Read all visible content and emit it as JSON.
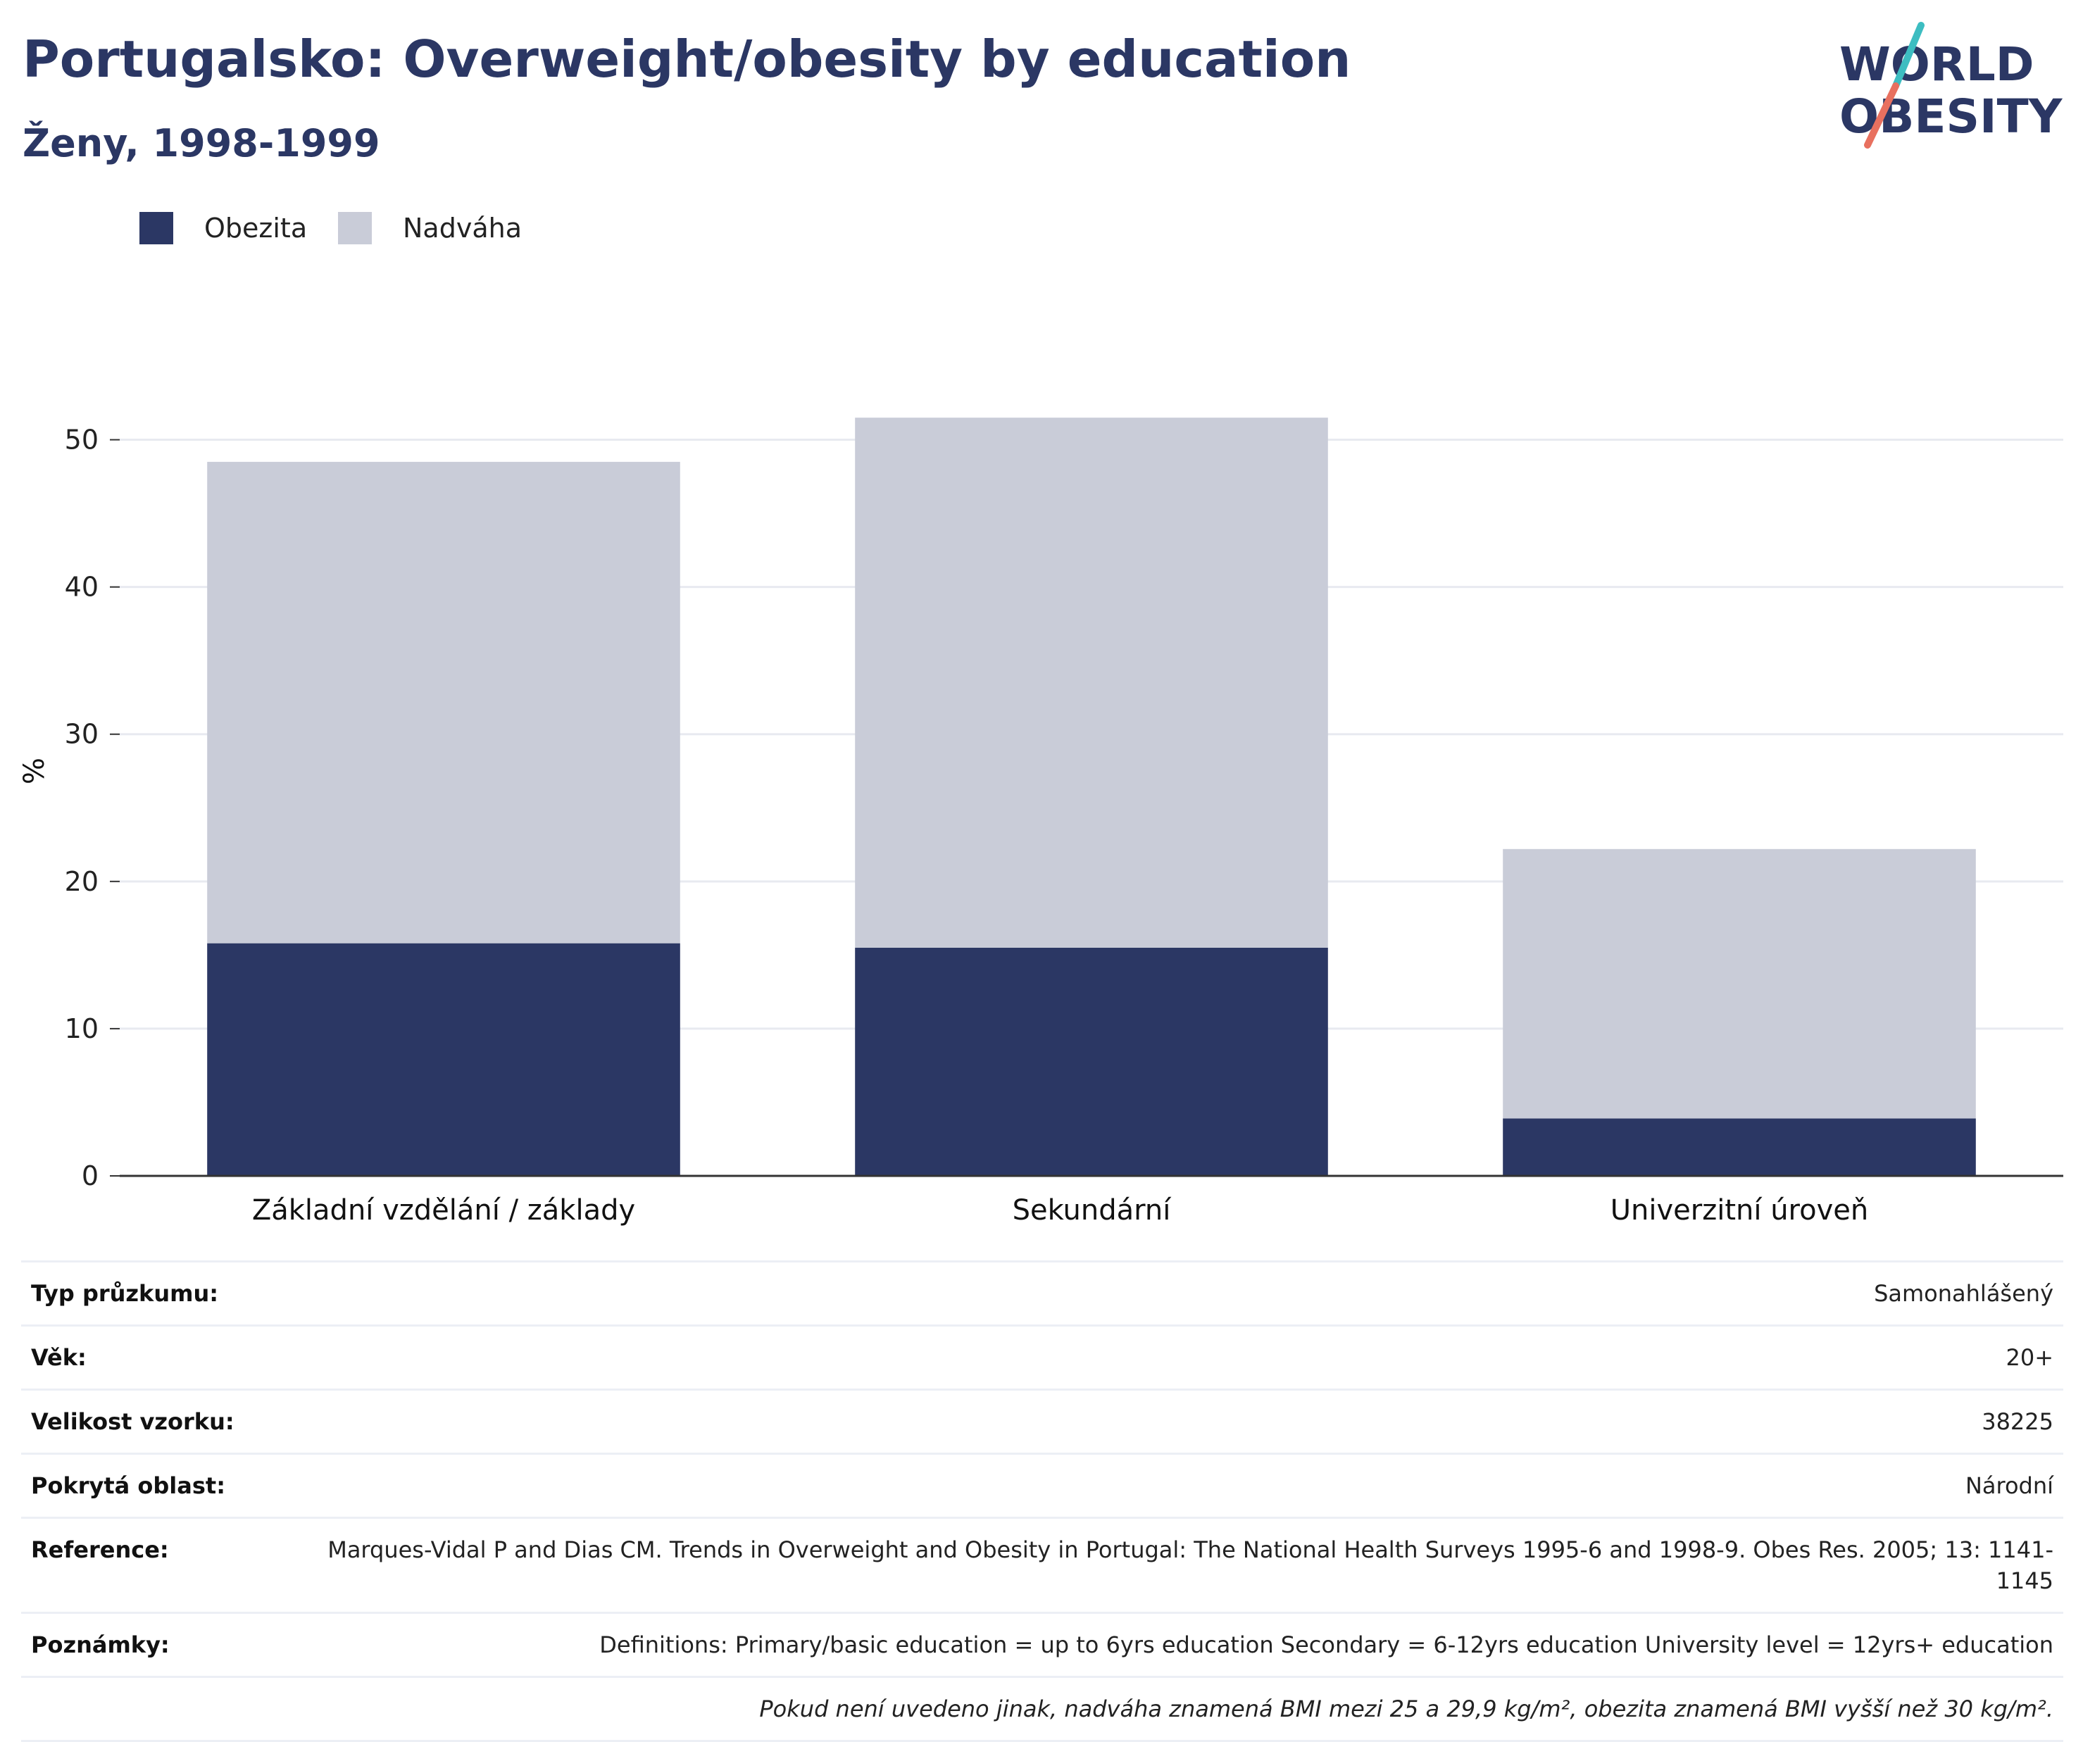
{
  "header": {
    "title": "Portugalsko: Overweight/obesity by education",
    "subtitle": "Ženy, 1998-1999"
  },
  "logo": {
    "line1": "WORLD",
    "line2": "OBESITY",
    "colors": {
      "text": "#2b3764",
      "slash_teal": "#3dbdc1",
      "slash_coral": "#e8705f"
    }
  },
  "legend": [
    {
      "label": "Obezita",
      "color": "#2b3764"
    },
    {
      "label": "Nadváha",
      "color": "#c9ccd8"
    }
  ],
  "chart_data": {
    "type": "bar",
    "stacked": true,
    "categories": [
      "Základní vzdělání / základy",
      "Sekundární",
      "Univerzitní úroveň"
    ],
    "series": [
      {
        "name": "Obezita",
        "values": [
          15.8,
          15.5,
          3.9
        ],
        "color": "#2b3764"
      },
      {
        "name": "Nadváha",
        "values": [
          32.7,
          36.0,
          18.3
        ],
        "color": "#c9ccd8"
      }
    ],
    "ylabel": "%",
    "ylim": [
      0,
      55
    ],
    "yticks": [
      0,
      10,
      20,
      30,
      40,
      50
    ],
    "grid": true,
    "legend_position": "top-left"
  },
  "meta": [
    {
      "key": "Typ průzkumu:",
      "value": "Samonahlášený"
    },
    {
      "key": "Věk:",
      "value": "20+"
    },
    {
      "key": "Velikost vzorku:",
      "value": "38225"
    },
    {
      "key": "Pokrytá oblast:",
      "value": "Národní"
    },
    {
      "key": "Reference:",
      "value": "Marques-Vidal P and Dias CM. Trends in Overweight and Obesity in Portugal: The National Health Surveys 1995-6 and 1998-9. Obes Res. 2005; 13: 1141-1145"
    },
    {
      "key": "Poznámky:",
      "value": "Definitions: Primary/basic education = up to 6yrs education Secondary = 6-12yrs education University level = 12yrs+ education"
    }
  ],
  "footnote": "Pokud není uvedeno jinak, nadváha znamená BMI mezi 25 a 29,9 kg/m², obezita znamená BMI vyšší než 30 kg/m²."
}
